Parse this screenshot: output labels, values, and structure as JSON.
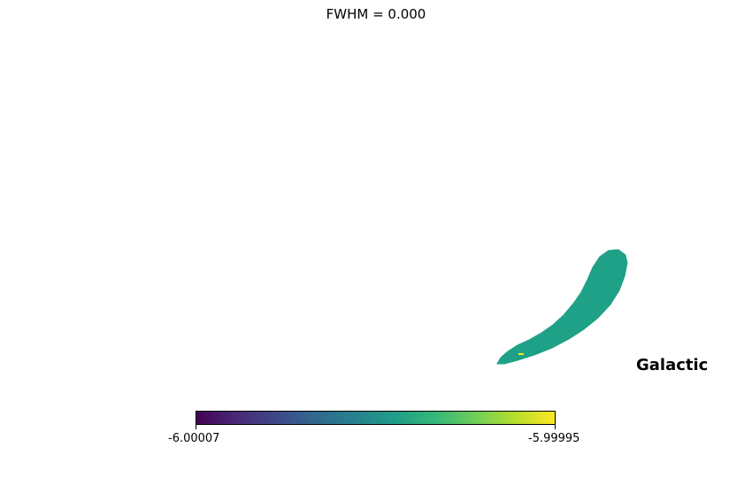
{
  "chart_data": {
    "type": "heatmap",
    "title": "FWHM = 0.000",
    "projection_label": "Galactic",
    "colormap": "viridis",
    "colormap_stops": [
      "#440154",
      "#482878",
      "#3e4989",
      "#31688e",
      "#26828e",
      "#1f9e89",
      "#35b779",
      "#6ece58",
      "#b5de2b",
      "#fde725"
    ],
    "colorbar": {
      "min_label": "-6.00007",
      "max_label": "-5.99995",
      "range": [
        -6.00007,
        -5.99995
      ]
    },
    "region": {
      "description_value": -6.00001,
      "fill_color": "#1fa187",
      "highlight_color": "#fde725"
    }
  }
}
